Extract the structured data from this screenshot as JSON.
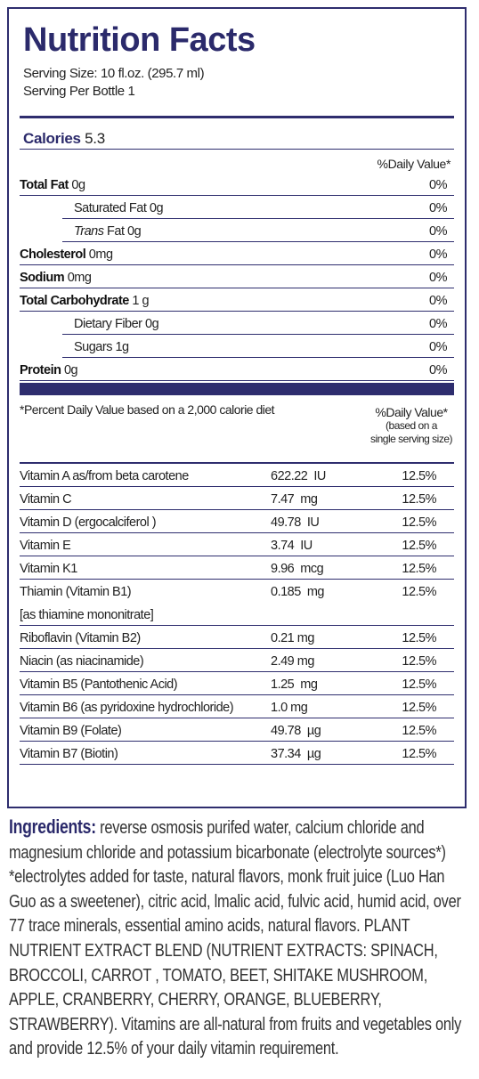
{
  "title": "Nutrition Facts",
  "serving": [
    "Serving Size: 10 fl.oz. (295.7 ml)",
    "Serving Per Bottle 1"
  ],
  "calories": {
    "label": "Calories",
    "value": "5.3"
  },
  "dv_header": "%Daily Value*",
  "nutrients": [
    {
      "name": "Total Fat",
      "amount": "0g",
      "dv": "0%",
      "level": "main"
    },
    {
      "name": "Saturated Fat",
      "amount": "0g",
      "dv": "0%",
      "level": "sub"
    },
    {
      "prefix": "Trans",
      "name": "Fat",
      "amount": "0g",
      "dv": "0%",
      "level": "sub"
    },
    {
      "name": "Cholesterol",
      "amount": "0mg",
      "dv": "0%",
      "level": "main"
    },
    {
      "name": "Sodium",
      "amount": "0mg",
      "dv": "0%",
      "level": "main"
    },
    {
      "name": "Total Carbohydrate",
      "amount": "1 g",
      "dv": "0%",
      "level": "main"
    },
    {
      "name": "Dietary Fiber",
      "amount": "0g",
      "dv": "0%",
      "level": "sub"
    },
    {
      "name": "Sugars",
      "amount": "1g",
      "dv": "0%",
      "level": "sub"
    },
    {
      "name": "Protein",
      "amount": "0g",
      "dv": "0%",
      "level": "main"
    }
  ],
  "footnote": "*Percent Daily Value based on a 2,000 calorie diet",
  "vitamin_dv_header": [
    "%Daily Value*",
    "(based on a",
    "single serving size)"
  ],
  "vitamins": [
    {
      "name": "Vitamin A as/from beta carotene",
      "amount": "622.22  IU",
      "dv": "12.5%"
    },
    {
      "name": "Vitamin C",
      "amount": "7.47  mg",
      "dv": "12.5%"
    },
    {
      "name": "Vitamin D  (ergocalciferol )",
      "amount": "49.78  IU",
      "dv": "12.5%"
    },
    {
      "name": "Vitamin E",
      "amount": "3.74  IU",
      "dv": "12.5%"
    },
    {
      "name": "Vitamin K1",
      "amount": "9.96  mcg",
      "dv": "12.5%"
    },
    {
      "name": "Thiamin (Vitamin B1)",
      "note": "[as thiamine mononitrate]",
      "amount": "0.185  mg",
      "dv": "12.5%"
    },
    {
      "name": "Riboflavin (Vitamin B2)",
      "amount": "0.21 mg",
      "dv": "12.5%"
    },
    {
      "name": "Niacin (as niacinamide)",
      "amount": "2.49 mg",
      "dv": "12.5%"
    },
    {
      "name": "Vitamin B5 (Pantothenic Acid)",
      "amount": "1.25  mg",
      "dv": "12.5%"
    },
    {
      "name": "Vitamin B6 (as pyridoxine hydrochloride)",
      "amount": "1.0 mg",
      "dv": "12.5%"
    },
    {
      "name": "Vitamin B9 (Folate)",
      "amount": "49.78  µg",
      "dv": "12.5%"
    },
    {
      "name": "Vitamin B7 (Biotin)",
      "amount": "37.34  µg",
      "dv": "12.5%"
    }
  ],
  "ingredients": {
    "label": "Ingredients:",
    "text": "reverse osmosis purifed water, calcium chloride and magnesium chloride and potassium bicarbonate (electrolyte sources*) *electrolytes added for taste, natural flavors, monk fruit juice (Luo Han Guo as a sweetener), citric acid, lmalic acid, fulvic acid, humid acid, over 77 trace minerals, essential amino acids, natural flavors. PLANT NUTRIENT EXTRACT BLEND (NUTRIENT EXTRACTS:  SPINACH, BROCCOLI, CARROT , TOMATO, BEET, SHITAKE MUSHROOM, APPLE, CRANBERRY, CHERRY, ORANGE, BLUEBERRY, STRAWBERRY). Vitamins are all-natural from fruits and vegetables only and provide 12.5% of your daily vitamin requirement."
  }
}
